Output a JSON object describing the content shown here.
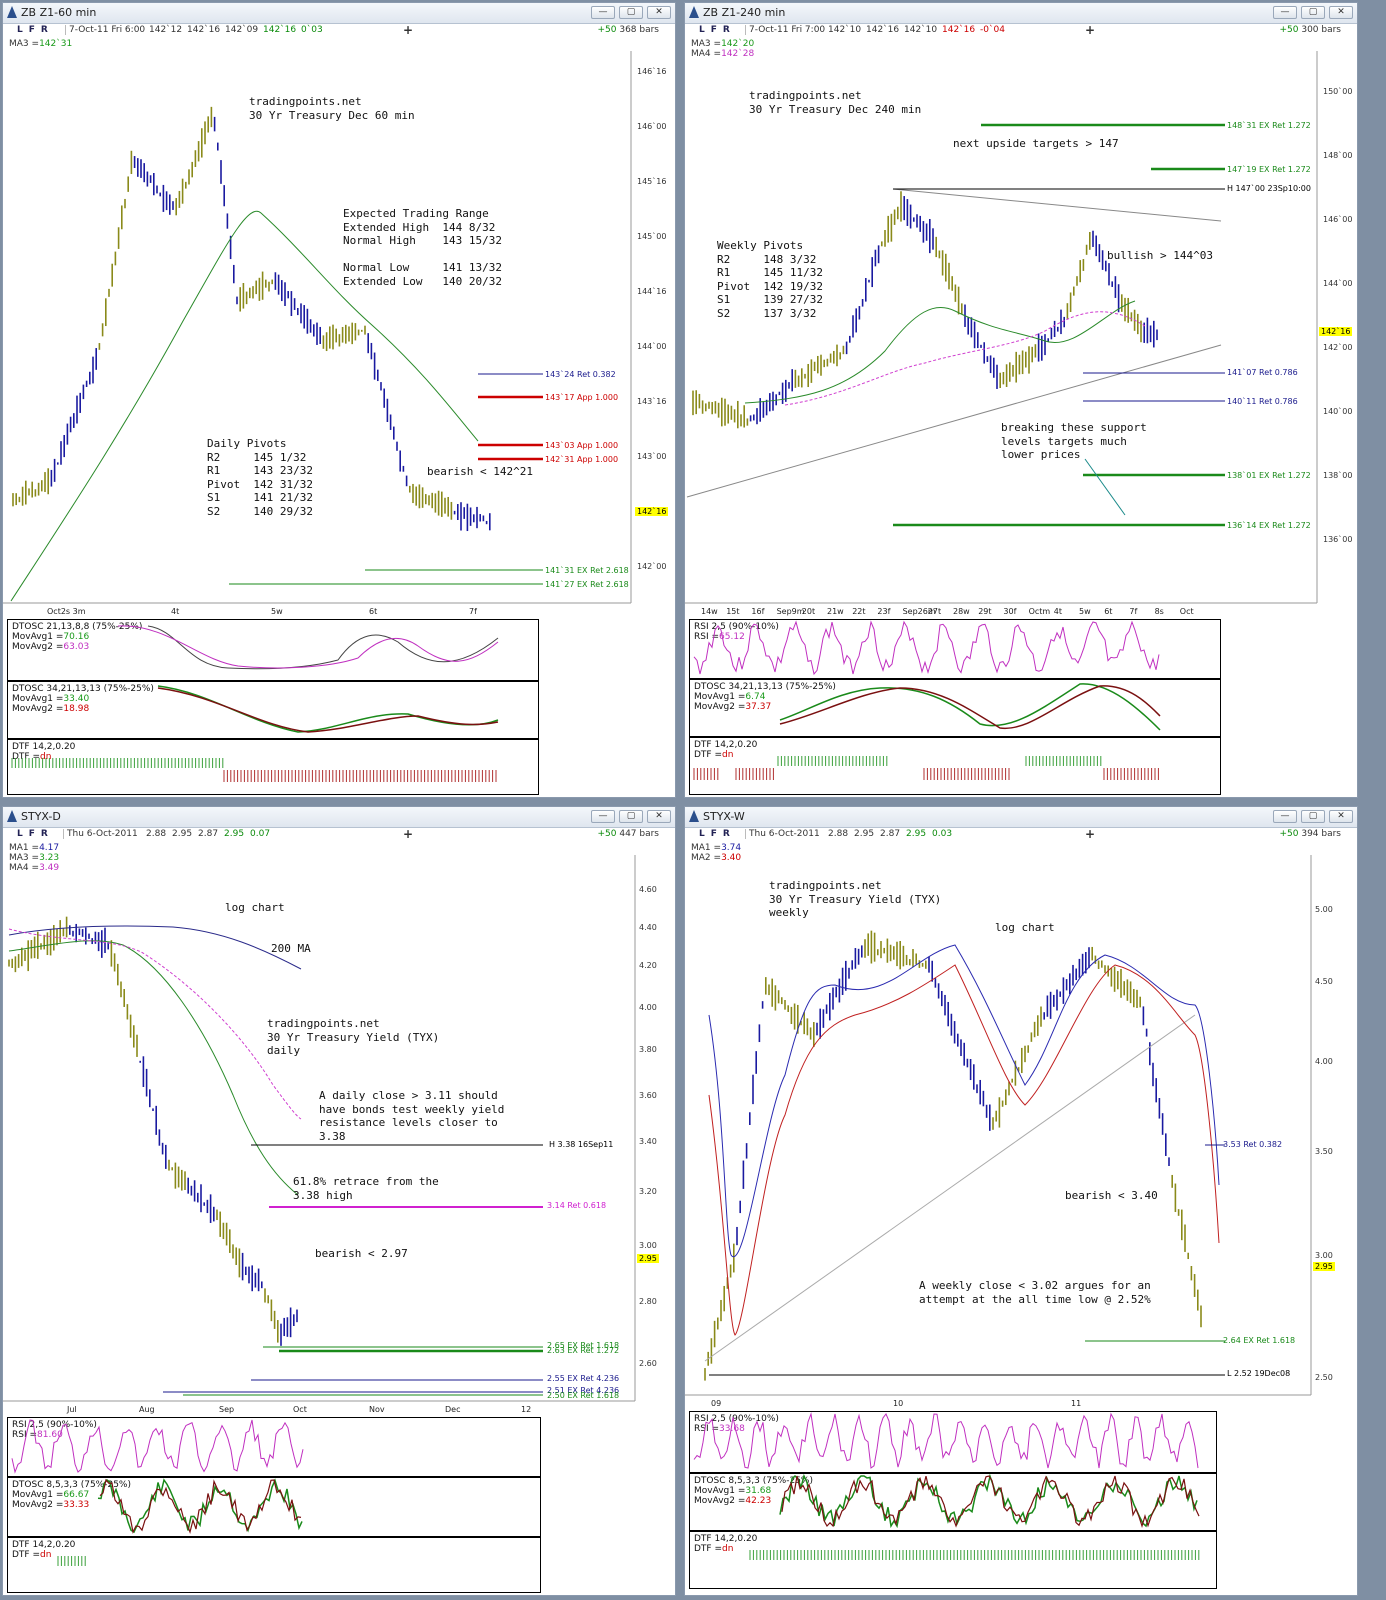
{
  "windows": [
    {
      "id": "w1",
      "title": "ZB Z1-60 min",
      "quote": {
        "date": "7-Oct-11 Fri 6:00",
        "o": "142`12",
        "h": "142`16",
        "l": "142`09",
        "c": "142`16",
        "chg": "0`03"
      },
      "bars": {
        "plus": "+50",
        "count": "368 bars"
      },
      "mas": [
        {
          "label": "MA3 =",
          "value": "142`31"
        }
      ],
      "price_axis": [
        "146`16",
        "146`00",
        "145`16",
        "145`00",
        "144`16",
        "144`00",
        "143`16",
        "143`00",
        "142`16",
        "142`00"
      ],
      "last_price": "142`16",
      "x_axis": [
        "Oct2s 3m",
        "4t",
        "5w",
        "6t",
        "7f"
      ],
      "notes": [
        "tradingpoints.net\n30 Yr Treasury Dec 60 min",
        "Expected Trading Range\nExtended High  144 8/32\nNormal High    143 15/32\n\nNormal Low     141 13/32\nExtended Low   140 20/32",
        "Daily Pivots\nR2     145 1/32\nR1     143 23/32\nPivot  142 31/32\nS1     141 21/32\nS2     140 29/32",
        "bearish < 142^21"
      ],
      "levels": [
        {
          "label": "143`24 Ret 0.382",
          "color": "#1a1a8c"
        },
        {
          "label": "143`17 App 1.000",
          "color": "#cc0000"
        },
        {
          "label": "143`03 App 1.000",
          "color": "#cc0000"
        },
        {
          "label": "142`31 App 1.000",
          "color": "#cc0000"
        },
        {
          "label": "141`31 EX Ret 2.618",
          "color": "#1a8a1a"
        },
        {
          "label": "141`27 EX Ret 2.618",
          "color": "#1a8a1a"
        }
      ],
      "indicators": [
        {
          "title": "DTOSC 21,13,8,8 (75%-25%)",
          "l1": "MovAvg1 =",
          "v1": "70.16",
          "l2": "MovAvg2 =",
          "v2": "63.03"
        },
        {
          "title": "DTOSC 34,21,13,13 (75%-25%)",
          "l1": "MovAvg1 =",
          "v1": "33.40",
          "l2": "MovAvg2 =",
          "v2": "18.98"
        },
        {
          "title": "DTF 14,2,0.20",
          "l1": "DTF =",
          "v1": "dn"
        }
      ]
    },
    {
      "id": "w2",
      "title": "ZB Z1-240 min",
      "quote": {
        "date": "7-Oct-11 Fri 7:00",
        "o": "142`10",
        "h": "142`16",
        "l": "142`10",
        "c": "142`16",
        "chg": "-0`04"
      },
      "bars": {
        "plus": "+50",
        "count": "300 bars"
      },
      "mas": [
        {
          "label": "MA3 =",
          "value": "142`20"
        },
        {
          "label": "MA4 =",
          "value": "142`28"
        }
      ],
      "price_axis": [
        "150`00",
        "148`00",
        "146`00",
        "144`00",
        "142`00",
        "140`00",
        "138`00",
        "136`00"
      ],
      "last_price": "142`16",
      "x_axis": [
        "14w",
        "15t",
        "16f",
        "Sep9m",
        "20t",
        "21w",
        "22t",
        "23f",
        "Sep26m",
        "27t",
        "28w",
        "29t",
        "30f",
        "Octm",
        "4t",
        "5w",
        "6t",
        "7f",
        "8s",
        "Oct"
      ],
      "notes": [
        "tradingpoints.net\n30 Yr Treasury Dec 240 min",
        "next upside targets > 147",
        "Weekly Pivots\nR2     148 3/32\nR1     145 11/32\nPivot  142 19/32\nS1     139 27/32\nS2     137 3/32",
        "bullish > 144^03",
        "breaking these support\nlevels targets much\nlower prices"
      ],
      "levels": [
        {
          "label": "148`31 EX Ret 1.272",
          "color": "#1a8a1a"
        },
        {
          "label": "147`19 EX Ret 1.272",
          "color": "#1a8a1a"
        },
        {
          "label": "H 147`00 23Sp10:00",
          "color": "#000000"
        },
        {
          "label": "141`07 Ret 0.786",
          "color": "#1a1a8c"
        },
        {
          "label": "140`11 Ret 0.786",
          "color": "#1a1a8c"
        },
        {
          "label": "138`01 EX Ret 1.272",
          "color": "#1a8a1a"
        },
        {
          "label": "136`14 EX Ret 1.272",
          "color": "#1a8a1a"
        }
      ],
      "indicators": [
        {
          "title": "RSI 2,5 (90%-10%)",
          "l1": "RSI =",
          "v1": "65.12"
        },
        {
          "title": "DTOSC 34,21,13,13 (75%-25%)",
          "l1": "MovAvg1 =",
          "v1": "6.74",
          "l2": "MovAvg2 =",
          "v2": "37.37"
        },
        {
          "title": "DTF 14,2,0.20",
          "l1": "DTF =",
          "v1": "dn"
        }
      ]
    },
    {
      "id": "w3",
      "title": "STYX-D",
      "quote": {
        "date": "Thu 6-Oct-2011",
        "o": "2.88",
        "h": "2.95",
        "l": "2.87",
        "c": "2.95",
        "chg": "0.07"
      },
      "bars": {
        "plus": "+50",
        "count": "447 bars"
      },
      "mas": [
        {
          "label": "MA1 =",
          "value": "4.17"
        },
        {
          "label": "MA3 =",
          "value": "3.23"
        },
        {
          "label": "MA4 =",
          "value": "3.49"
        }
      ],
      "price_axis": [
        "4.60",
        "4.40",
        "4.20",
        "4.00",
        "3.80",
        "3.60",
        "3.40",
        "3.20",
        "3.00",
        "2.80",
        "2.60"
      ],
      "last_price": "2.95",
      "x_axis": [
        "Jul",
        "Aug",
        "Sep",
        "Oct",
        "Nov",
        "Dec",
        "12"
      ],
      "notes": [
        "log chart",
        "200 MA",
        "tradingpoints.net\n30 Yr Treasury Yield (TYX)\ndaily",
        "A daily close > 3.11 should\nhave bonds test weekly yield\nresistance levels closer to\n3.38",
        "61.8% retrace from the\n3.38 high",
        "bearish < 2.97"
      ],
      "levels": [
        {
          "label": "H 3.38 16Sep11",
          "color": "#000000"
        },
        {
          "label": "3.14 Ret 0.618",
          "color": "#d020d0"
        },
        {
          "label": "2.65 EX Ret 1.618",
          "color": "#1a8a1a"
        },
        {
          "label": "2.63 EX Ret 1.272",
          "color": "#1a8a1a"
        },
        {
          "label": "2.55 EX Ret 4.236",
          "color": "#1a1a8c"
        },
        {
          "label": "2.51 EX Ret 4.236",
          "color": "#1a1a8c"
        },
        {
          "label": "2.50 EX Ret 1.618",
          "color": "#1a8a1a"
        }
      ],
      "indicators": [
        {
          "title": "RSI 2,5 (90%-10%)",
          "l1": "RSI =",
          "v1": "81.60"
        },
        {
          "title": "DTOSC 8,5,3,3 (75%-25%)",
          "l1": "MovAvg1 =",
          "v1": "66.67",
          "l2": "MovAvg2 =",
          "v2": "33.33"
        },
        {
          "title": "DTF 14,2,0.20",
          "l1": "DTF =",
          "v1": "dn"
        }
      ]
    },
    {
      "id": "w4",
      "title": "STYX-W",
      "quote": {
        "date": "Thu 6-Oct-2011",
        "o": "2.88",
        "h": "2.95",
        "l": "2.87",
        "c": "2.95",
        "chg": "0.03"
      },
      "bars": {
        "plus": "+50",
        "count": "394 bars"
      },
      "mas": [
        {
          "label": "MA1 =",
          "value": "3.74"
        },
        {
          "label": "MA2 =",
          "value": "3.40"
        }
      ],
      "price_axis": [
        "5.00",
        "4.50",
        "4.00",
        "3.50",
        "3.00",
        "2.50"
      ],
      "last_price": "2.95",
      "x_axis": [
        "09",
        "10",
        "11"
      ],
      "notes": [
        "tradingpoints.net\n30 Yr Treasury Yield (TYX)\nweekly",
        "log chart",
        "bearish < 3.40",
        "A weekly close < 3.02 argues for an\nattempt at the all time low @ 2.52%"
      ],
      "levels": [
        {
          "label": "3.53 Ret 0.382",
          "color": "#1a1a8c"
        },
        {
          "label": "2.64 EX Ret 1.618",
          "color": "#1a8a1a"
        },
        {
          "label": "L 2.52 19Dec08",
          "color": "#000000"
        }
      ],
      "indicators": [
        {
          "title": "RSI 2,5 (90%-10%)",
          "l1": "RSI =",
          "v1": "33.68"
        },
        {
          "title": "DTOSC 8,5,3,3 (75%-25%)",
          "l1": "MovAvg1 =",
          "v1": "31.68",
          "l2": "MovAvg2 =",
          "v2": "42.23"
        },
        {
          "title": "DTF 14,2,0.20",
          "l1": "DTF =",
          "v1": "dn"
        }
      ]
    }
  ],
  "window_controls": [
    "minimize-button",
    "restore-button",
    "close-button"
  ],
  "colors": {
    "bar_up": "#8a8a1a",
    "bar_down": "#1a1aa0",
    "ma_green": "#2a8a2a",
    "ma_pink": "#d040d0",
    "highlight": "#ffff00"
  }
}
